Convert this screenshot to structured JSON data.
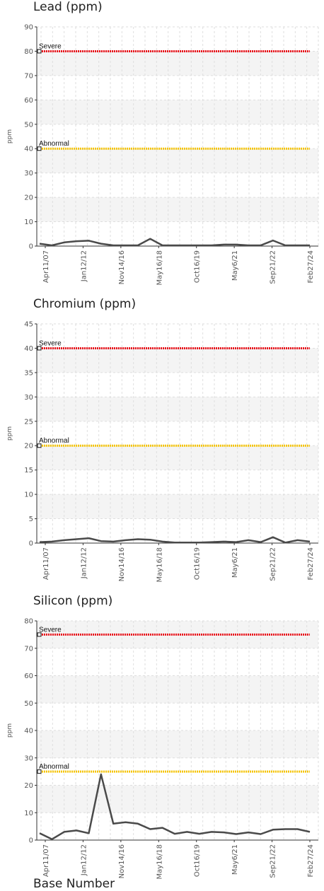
{
  "chart_data": [
    {
      "type": "line",
      "title": "Lead (ppm)",
      "ylabel": "ppm",
      "ylim": [
        0,
        90
      ],
      "yticks": [
        0,
        10,
        20,
        30,
        40,
        50,
        60,
        70,
        80,
        90
      ],
      "x_tick_labels": [
        "Apr11/07",
        "Jan12/12",
        "Nov14/16",
        "May16/18",
        "Oct16/19",
        "May6/21",
        "Sep21/22",
        "Feb27/24"
      ],
      "grid": true,
      "limits": [
        {
          "label": "Severe",
          "value": 80,
          "color": "#e8141c"
        },
        {
          "label": "Abnormal",
          "value": 40,
          "color": "#f5c400"
        }
      ],
      "series": [
        {
          "values": [
            1,
            0.3,
            1.5,
            2,
            2.2,
            1,
            0.3,
            0.3,
            0.3,
            3,
            0.3,
            0.3,
            0.3,
            0.3,
            0.3,
            0.6,
            0.6,
            0.3,
            0.3,
            2.3,
            0.3,
            0.3,
            0.3
          ],
          "color": "#4a4a4a"
        }
      ]
    },
    {
      "type": "line",
      "title": "Chromium (ppm)",
      "ylabel": "ppm",
      "ylim": [
        0,
        45
      ],
      "yticks": [
        0,
        5,
        10,
        15,
        20,
        25,
        30,
        35,
        40,
        45
      ],
      "x_tick_labels": [
        "Apr11/07",
        "Jan12/12",
        "Nov14/16",
        "May16/18",
        "Oct16/19",
        "May6/21",
        "Sep21/22",
        "Feb27/24"
      ],
      "grid": true,
      "limits": [
        {
          "label": "Severe",
          "value": 40,
          "color": "#e8141c"
        },
        {
          "label": "Abnormal",
          "value": 20,
          "color": "#f5c400"
        }
      ],
      "series": [
        {
          "values": [
            0.2,
            0.3,
            0.6,
            0.8,
            1,
            0.4,
            0.3,
            0.6,
            0.8,
            0.7,
            0.3,
            0.1,
            0.1,
            0.1,
            0.2,
            0.3,
            0.2,
            0.6,
            0.2,
            1.2,
            0.1,
            0.6,
            0.3
          ],
          "color": "#4a4a4a"
        }
      ]
    },
    {
      "type": "line",
      "title": "Silicon (ppm)",
      "ylabel": "ppm",
      "ylim": [
        0,
        80
      ],
      "yticks": [
        0,
        10,
        20,
        30,
        40,
        50,
        60,
        70,
        80
      ],
      "x_tick_labels": [
        "Apr11/07",
        "Jan12/12",
        "Nov14/16",
        "May16/18",
        "Oct16/19",
        "May6/21",
        "Sep21/22",
        "Feb27/24"
      ],
      "grid": true,
      "limits": [
        {
          "label": "Severe",
          "value": 75,
          "color": "#e8141c"
        },
        {
          "label": "Abnormal",
          "value": 25,
          "color": "#f5c400"
        }
      ],
      "series": [
        {
          "values": [
            2.5,
            0.3,
            3,
            3.5,
            2.5,
            24,
            6,
            6.5,
            6,
            4,
            4.5,
            2.3,
            3,
            2.3,
            3,
            2.8,
            2.2,
            2.8,
            2.2,
            3.8,
            4,
            4,
            3
          ],
          "color": "#4a4a4a"
        }
      ]
    }
  ],
  "next_panel_title": "Base Number"
}
